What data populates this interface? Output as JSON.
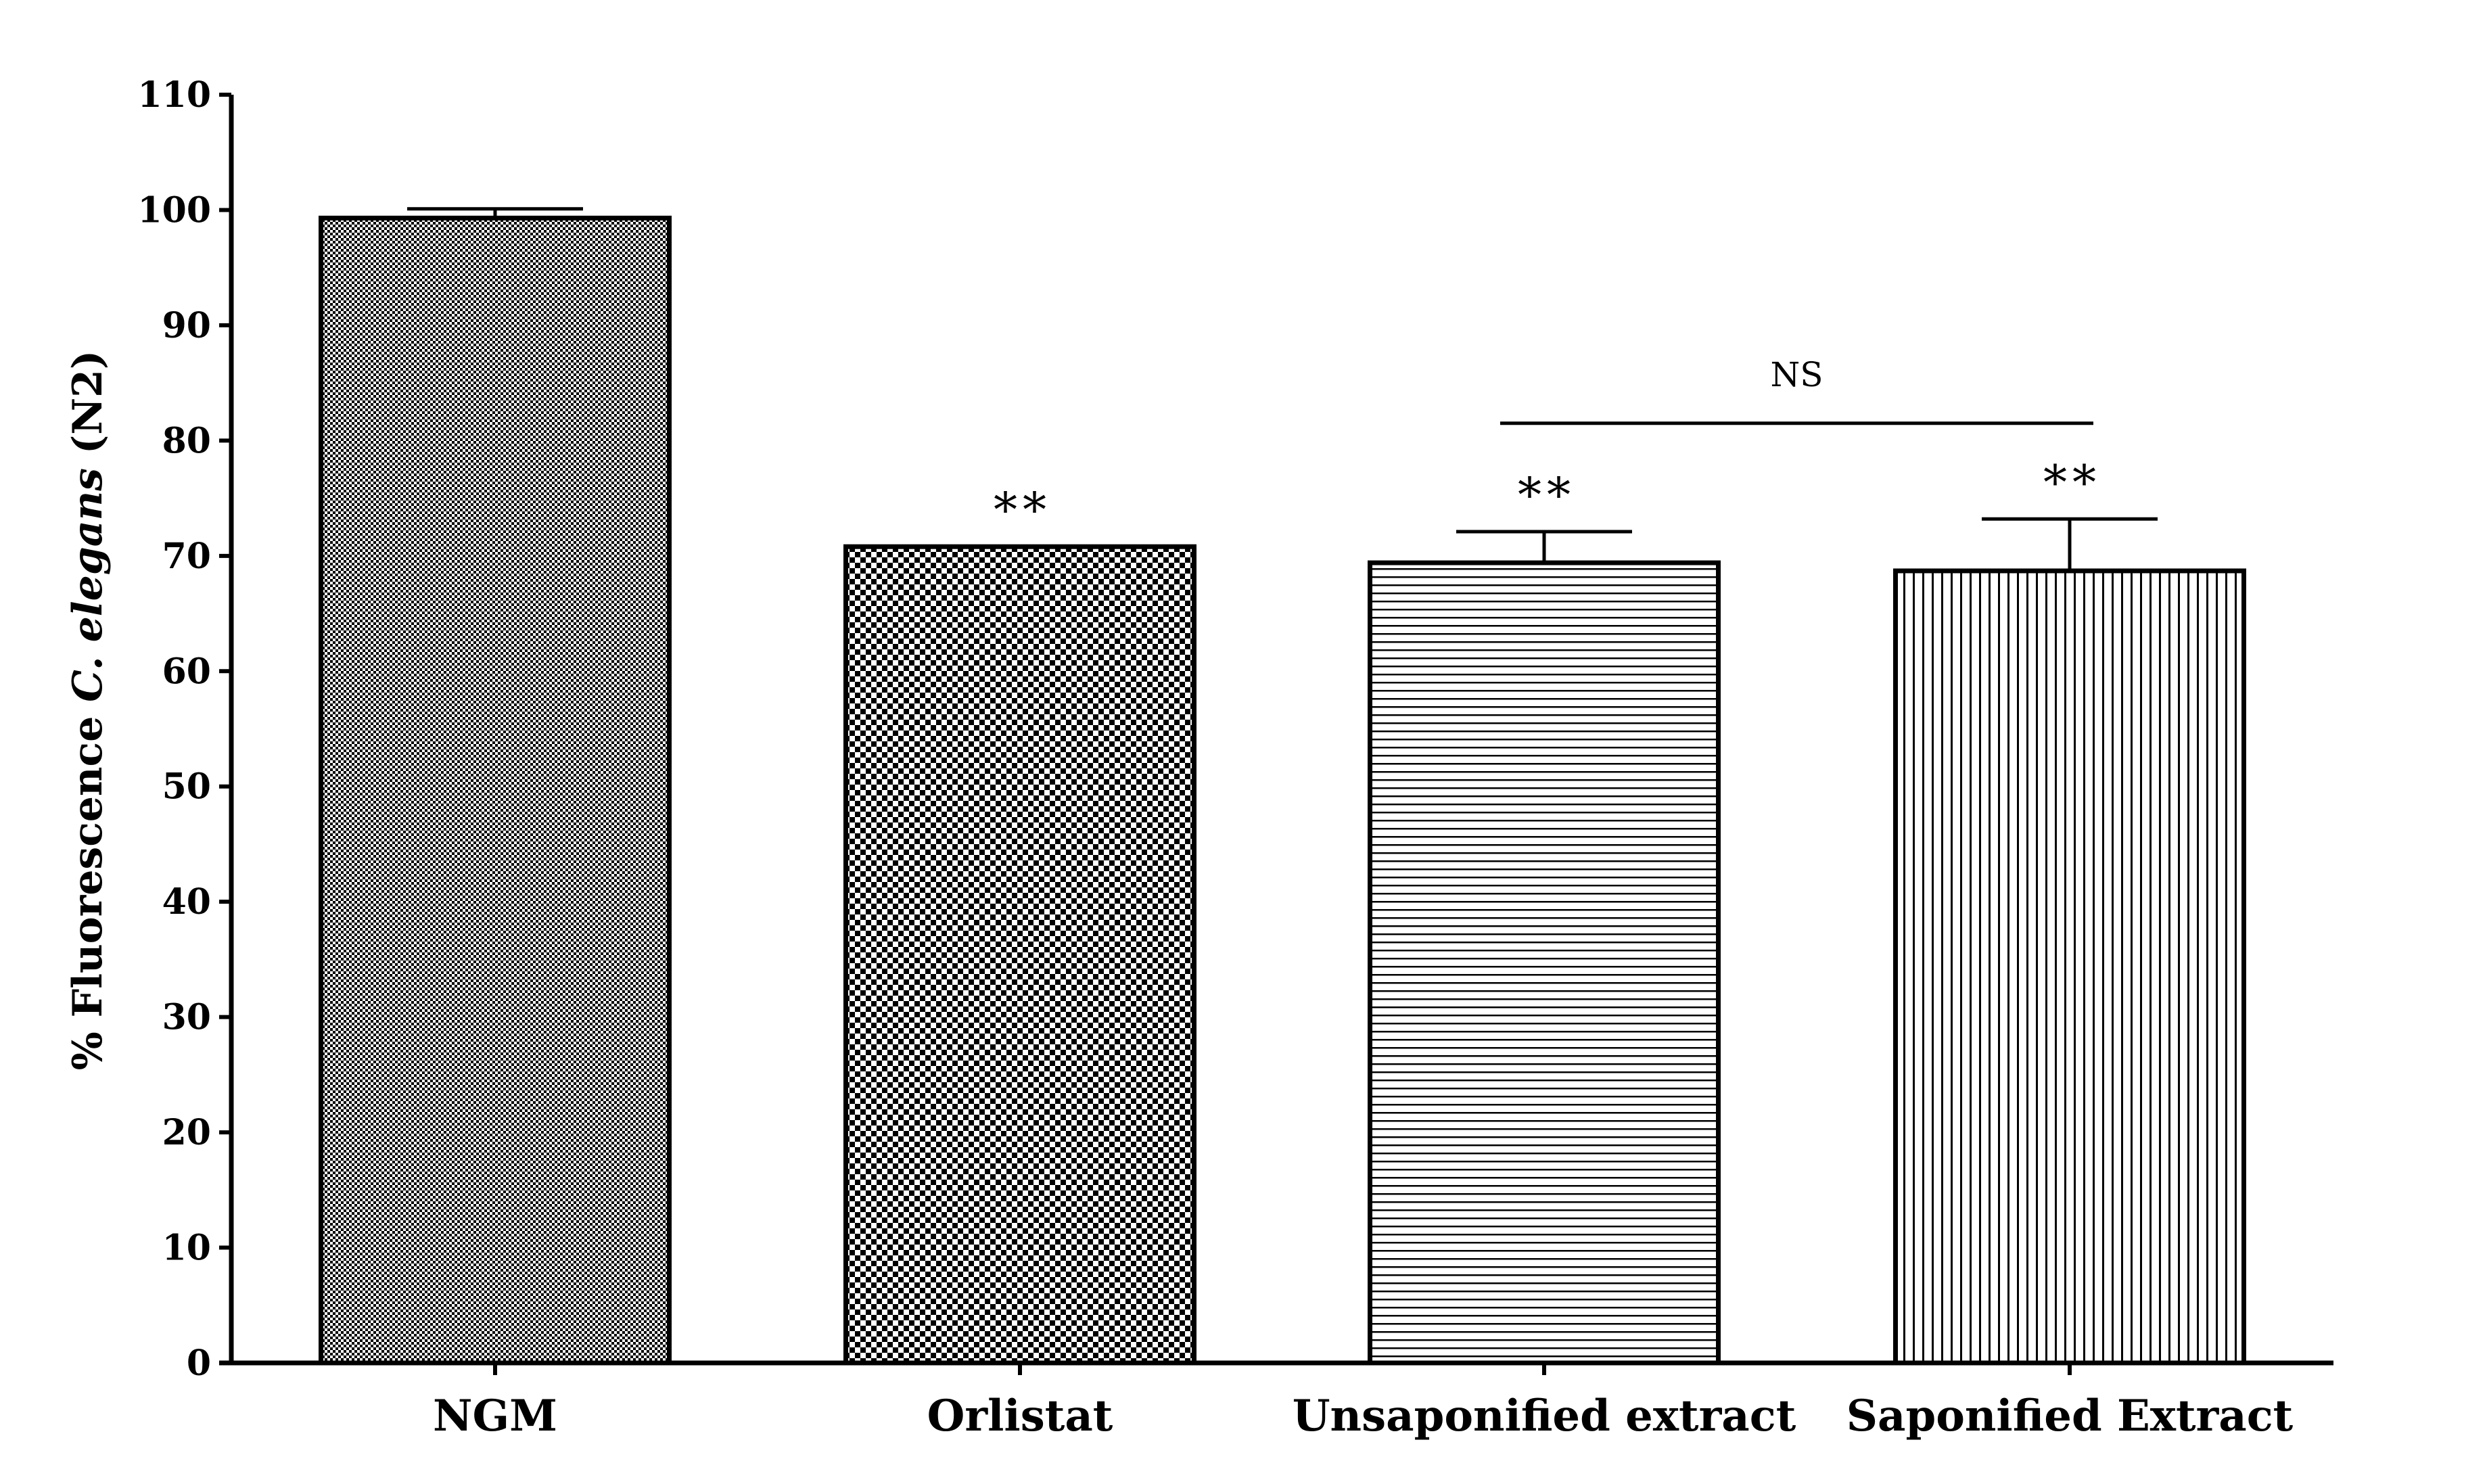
{
  "chart_data": {
    "type": "bar",
    "title": "",
    "xlabel": "",
    "ylabel": {
      "prefix": "% Fluorescence ",
      "italic": "C. elegans",
      "suffix": " (N2)"
    },
    "ylim": [
      0,
      110
    ],
    "yticks": [
      0,
      10,
      20,
      30,
      40,
      50,
      60,
      70,
      80,
      90,
      100,
      110
    ],
    "grid": false,
    "categories": [
      "NGM",
      "Orlistat",
      "Unsaponified extract",
      "Saponified Extract"
    ],
    "values": [
      99.3,
      70.8,
      69.4,
      68.7
    ],
    "errors": [
      0.8,
      0,
      2.7,
      4.5
    ],
    "patterns": [
      "fine-checker",
      "coarse-checker",
      "horizontal-lines",
      "vertical-lines"
    ],
    "significance": [
      "",
      "**",
      "**",
      "**"
    ],
    "comparison": {
      "from": "Unsaponified extract",
      "to": "Saponified Extract",
      "label": "NS",
      "y": 81.5
    },
    "colors": {
      "bar_fill": "#ffffff",
      "bar_stroke": "#000000",
      "pattern_ink": "#000000",
      "axis": "#000000"
    }
  }
}
